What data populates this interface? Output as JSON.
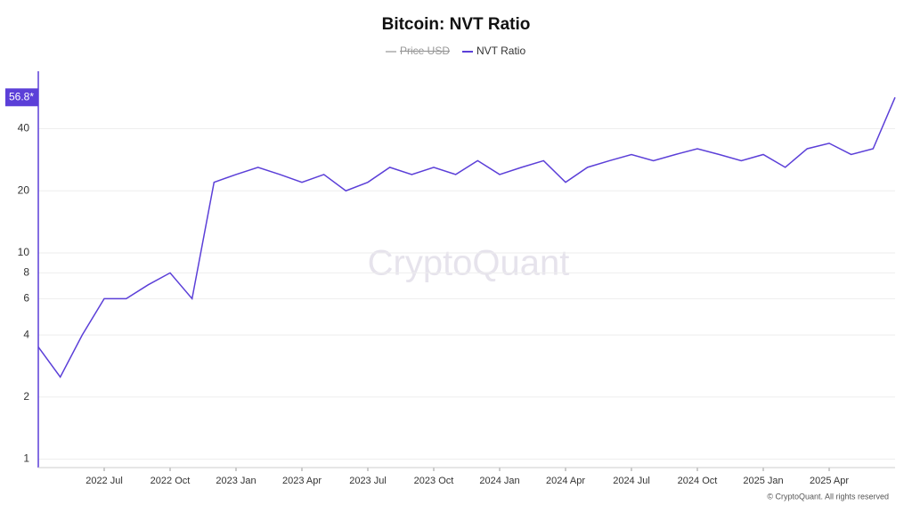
{
  "chart_data": {
    "type": "line",
    "title": "Bitcoin: NVT Ratio",
    "hidden_series": [
      "Price USD"
    ],
    "x": [
      "2022-04",
      "2022-05",
      "2022-06",
      "2022-07",
      "2022-08",
      "2022-09",
      "2022-10",
      "2022-11",
      "2022-12",
      "2023-01",
      "2023-02",
      "2023-03",
      "2023-04",
      "2023-05",
      "2023-06",
      "2023-07",
      "2023-08",
      "2023-09",
      "2023-10",
      "2023-11",
      "2023-12",
      "2024-01",
      "2024-02",
      "2024-03",
      "2024-04",
      "2024-05",
      "2024-06",
      "2024-07",
      "2024-08",
      "2024-09",
      "2024-10",
      "2024-11",
      "2024-12",
      "2025-01",
      "2025-02",
      "2025-03",
      "2025-04",
      "2025-05",
      "2025-06",
      "2025-07"
    ],
    "series": [
      {
        "name": "NVT Ratio",
        "color": "#5b3fd8",
        "values": [
          3.5,
          2.5,
          4,
          6,
          6,
          7,
          8,
          6,
          22,
          24,
          26,
          24,
          22,
          24,
          20,
          22,
          26,
          24,
          26,
          24,
          28,
          24,
          26,
          28,
          22,
          26,
          28,
          30,
          28,
          30,
          32,
          30,
          28,
          30,
          26,
          32,
          34,
          30,
          32,
          56.8
        ]
      }
    ],
    "xlim": [
      "2022-04",
      "2025-07"
    ],
    "xticks": [
      {
        "value": "2022-07",
        "label": "2022 Jul"
      },
      {
        "value": "2022-10",
        "label": "2022 Oct"
      },
      {
        "value": "2023-01",
        "label": "2023 Jan"
      },
      {
        "value": "2023-04",
        "label": "2023 Apr"
      },
      {
        "value": "2023-07",
        "label": "2023 Jul"
      },
      {
        "value": "2023-10",
        "label": "2023 Oct"
      },
      {
        "value": "2024-01",
        "label": "2024 Jan"
      },
      {
        "value": "2024-04",
        "label": "2024 Apr"
      },
      {
        "value": "2024-07",
        "label": "2024 Jul"
      },
      {
        "value": "2024-10",
        "label": "2024 Oct"
      },
      {
        "value": "2025-01",
        "label": "2025 Jan"
      },
      {
        "value": "2025-04",
        "label": "2025 Apr"
      }
    ],
    "ylim": [
      0.91,
      76
    ],
    "yticks": [
      1,
      2,
      4,
      6,
      8,
      10,
      20,
      40
    ],
    "y_scale": "log",
    "grid": true,
    "y_marker": {
      "value": 56.8,
      "label": "56.8*"
    },
    "watermark": "CryptoQuant",
    "footer": "© CryptoQuant. All rights reserved"
  }
}
